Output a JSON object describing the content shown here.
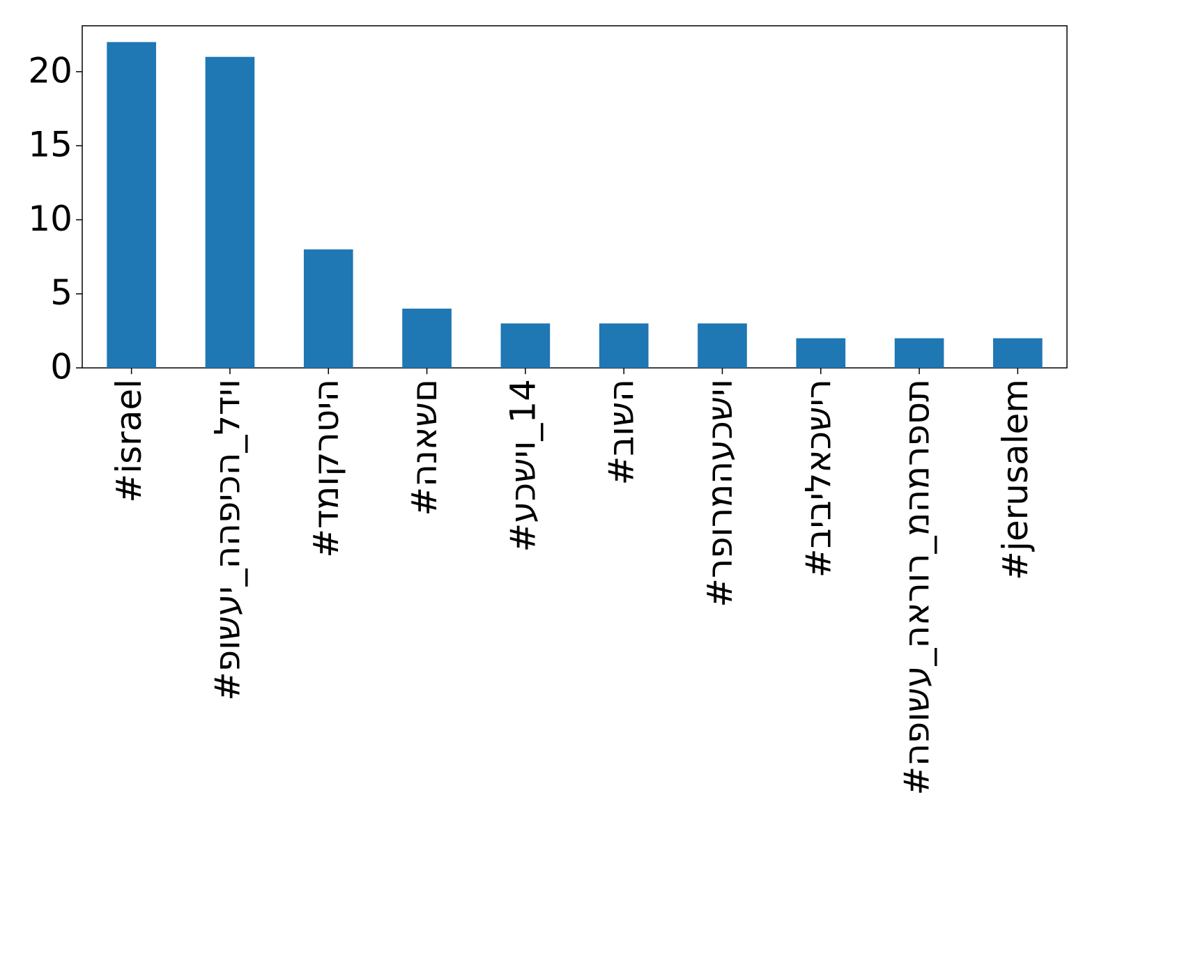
{
  "chart_data": {
    "type": "bar",
    "categories": [
      "#israel",
      "#פושעי_ההפיכה_לדיו",
      "#דמוקרטיה",
      "#הנאשם",
      "#עכשיו_14",
      "#בושה",
      "#רפורמהעכשיו",
      "#ביבילאכשיר",
      "#הפושע_הארור_מהמרפסת",
      "#jerusalem"
    ],
    "values": [
      22,
      21,
      8,
      4,
      3,
      3,
      3,
      2,
      2,
      2
    ],
    "color": "#1f77b4",
    "ylim": [
      0,
      23.1
    ],
    "yticks": [
      0,
      5,
      10,
      15,
      20
    ],
    "grid": false
  }
}
